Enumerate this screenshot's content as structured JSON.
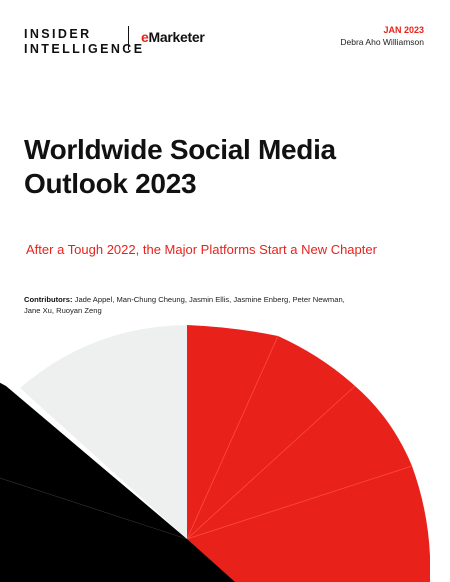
{
  "header": {
    "brand_line1": "INSIDER",
    "brand_line2": "INTELLIGENCE",
    "partner_mark": "e",
    "partner_name": "Marketer",
    "date": "JAN 2023",
    "author": "Debra Aho Williamson"
  },
  "title_line1": "Worldwide Social Media",
  "title_line2": "Outlook 2023",
  "subtitle": "After a Tough 2022, the Major Platforms Start a New Chapter",
  "contributors": {
    "label": "Contributors:",
    "line1": "Jade Appel, Man-Chung Cheung, Jasmin Ellis, Jasmine Enberg, Peter Newman,",
    "line2": "Jane Xu, Ruoyan Zeng"
  },
  "colors": {
    "accent": "#e8221b",
    "black": "#000000",
    "light_gray": "#eef0f0"
  }
}
